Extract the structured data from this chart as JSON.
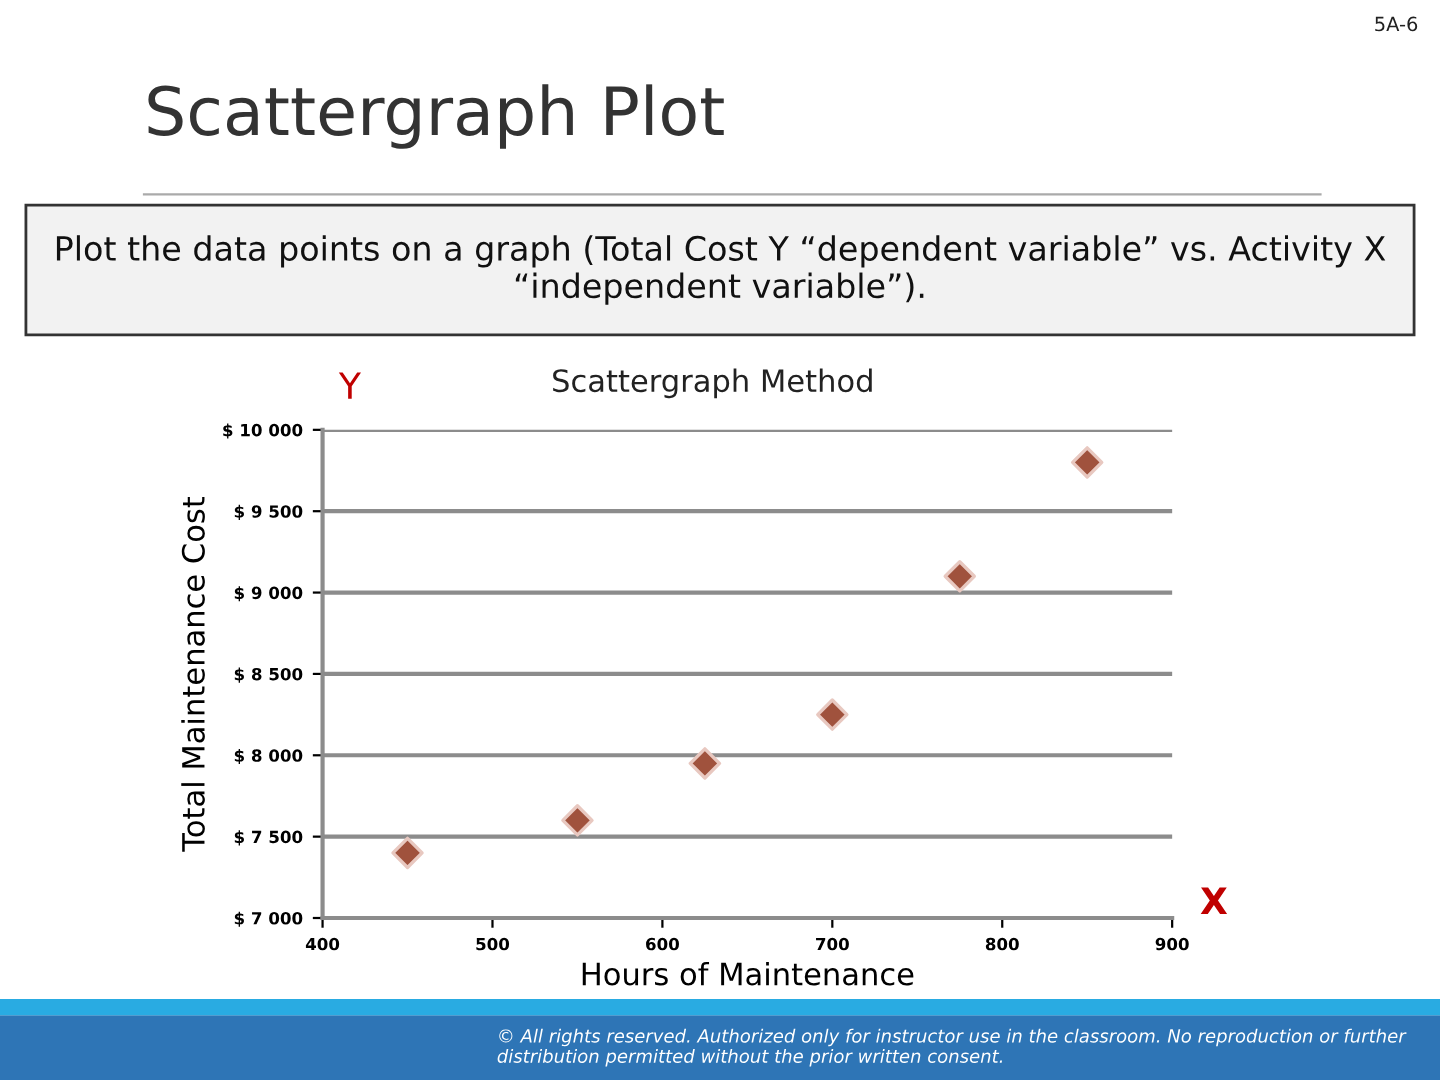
{
  "chart_data": {
    "type": "scatter",
    "title": "Scattergraph Plot",
    "subtitle": "Plot the data points on a graph (Total Cost Y “dependent variable” vs. Activity X “independent variable”).",
    "xlabel": "Hours of Maintenance",
    "ylabel": "Total Maintenance Cost",
    "annotations": [
      "Scattergraph Method",
      "Y",
      "X",
      "5A-6",
      "© All rights reserved. Authorized only for instructor use in the classroom. No reproduction or further distribution permitted without the prior written consent."
    ],
    "x": [
      450,
      550,
      625,
      700,
      775,
      850
    ],
    "series": [
      {
        "color": "#a0523d",
        "values": [
          7400,
          7600,
          7950,
          8250,
          9100,
          9800
        ]
      }
    ],
    "xlim": [
      400,
      900
    ],
    "xticks": [
      400,
      500,
      600,
      700,
      800,
      900
    ],
    "ylim": [
      7000,
      10000
    ],
    "yticks": [
      {
        "value": 7000,
        "label": "$ 7 000"
      },
      {
        "value": 7500,
        "label": "$ 7 500"
      },
      {
        "value": 8000,
        "label": "$ 8 000"
      },
      {
        "value": 8500,
        "label": "$ 8 500"
      },
      {
        "value": 9000,
        "label": "$ 9 000"
      },
      {
        "value": 9500,
        "label": "$ 9 500"
      },
      {
        "value": 10000,
        "label": "$ 10 000"
      }
    ],
    "grid": "y",
    "legend": false,
    "marker": "diamond"
  }
}
